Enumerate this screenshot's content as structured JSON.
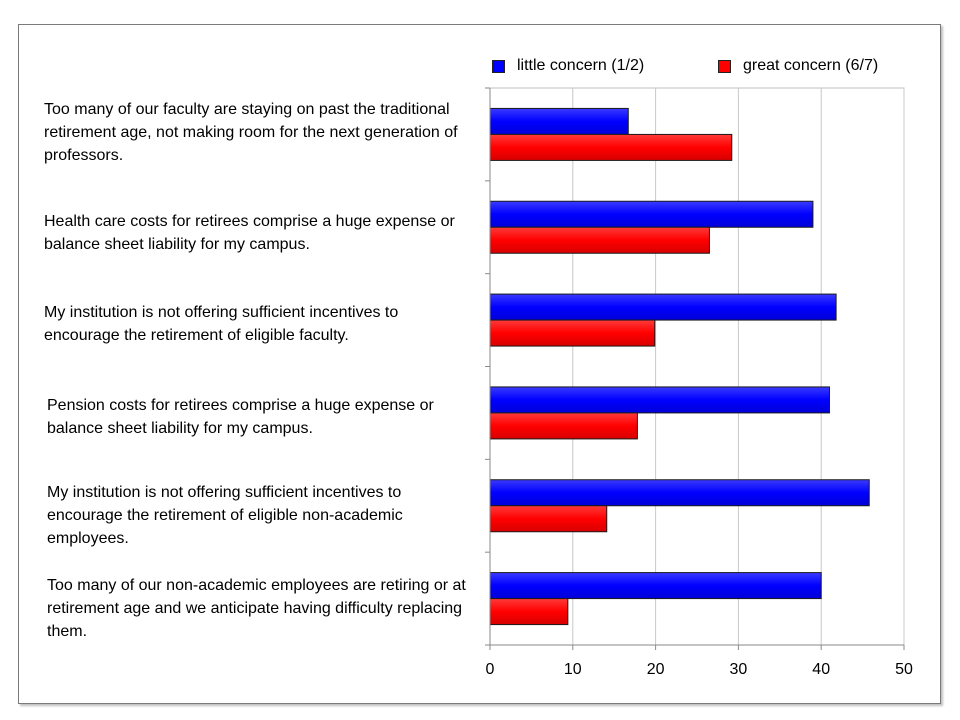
{
  "chart_data": {
    "type": "bar",
    "orientation": "horizontal",
    "title": "",
    "xlabel": "",
    "ylabel": "",
    "xlim": [
      0,
      50
    ],
    "x_ticks": [
      0,
      10,
      20,
      30,
      40,
      50
    ],
    "grid": true,
    "legend_position": "top-right",
    "categories": [
      "Too many of our faculty are staying on past the traditional retirement age, not making room for the next generation of professors.",
      "Health care costs for retirees comprise a huge expense or balance sheet liability for my campus.",
      "My institution is not offering sufficient incentives to encourage the retirement of eligible faculty.",
      "Pension costs for retirees comprise a huge expense or balance sheet liability for my campus.",
      "My institution is not offering sufficient incentives to encourage the retirement of eligible non-academic employees.",
      "Too many of our non-academic employees are retiring or at retirement age and we anticipate having difficulty replacing them."
    ],
    "series": [
      {
        "name": "little concern (1/2)",
        "color": "#0000ff",
        "values": [
          16.7,
          39,
          41.8,
          41,
          45.8,
          40
        ]
      },
      {
        "name": "great concern (6/7)",
        "color": "#ff0000",
        "values": [
          29.2,
          26.5,
          19.9,
          17.8,
          14.1,
          9.4
        ]
      }
    ]
  }
}
